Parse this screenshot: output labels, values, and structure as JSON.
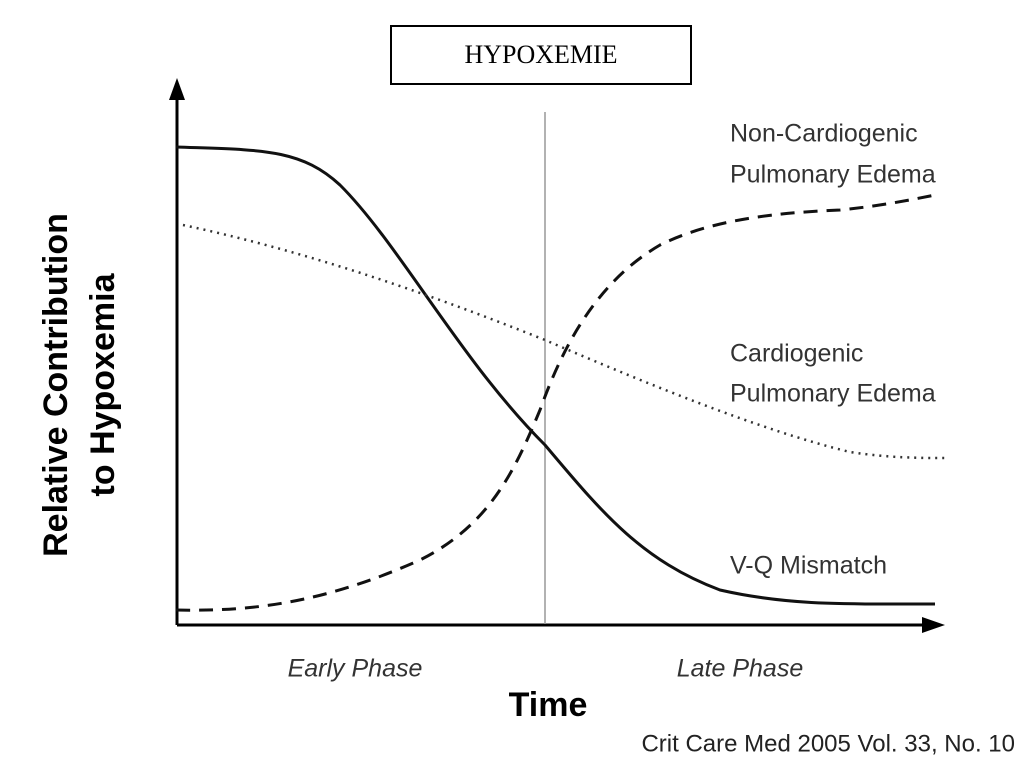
{
  "title": "HYPOXEMIE",
  "y_axis_label": [
    "Relative Contribution",
    "to Hypoxemia"
  ],
  "x_axis_label": "Time",
  "phases": [
    "Early Phase",
    "Late Phase"
  ],
  "curve_labels": {
    "non_cardiogenic": [
      "Non-Cardiogenic",
      "Pulmonary Edema"
    ],
    "cardiogenic": [
      "Cardiogenic",
      "Pulmonary Edema"
    ],
    "vq_mismatch": "V-Q Mismatch"
  },
  "citation": "Crit Care Med 2005 Vol. 33, No. 10"
}
